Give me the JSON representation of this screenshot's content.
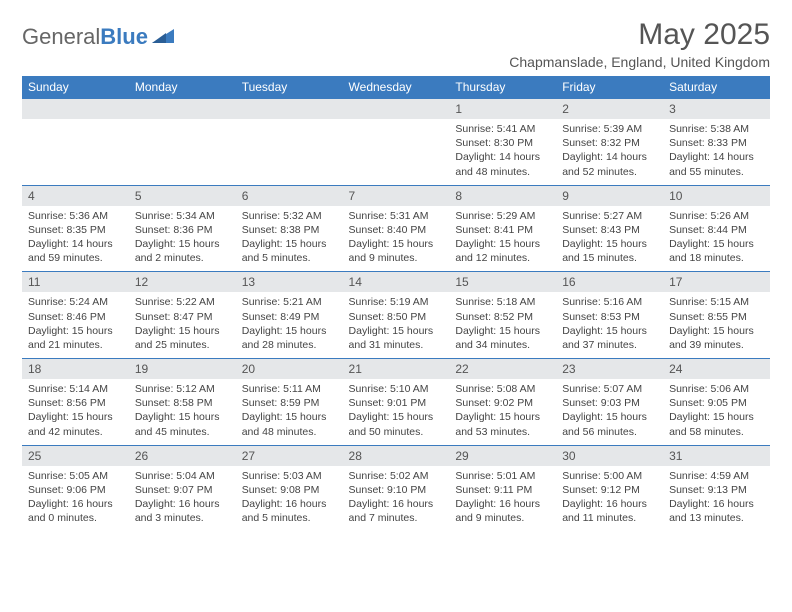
{
  "logo": {
    "text_general": "General",
    "text_blue": "Blue"
  },
  "title": "May 2025",
  "location": "Chapmanslade, England, United Kingdom",
  "colors": {
    "header_bg": "#3b7bbf",
    "header_text": "#ffffff",
    "date_row_bg": "#e5e7e9",
    "border": "#3b7bbf",
    "body_text": "#444444",
    "title_text": "#555555"
  },
  "day_names": [
    "Sunday",
    "Monday",
    "Tuesday",
    "Wednesday",
    "Thursday",
    "Friday",
    "Saturday"
  ],
  "weeks": [
    {
      "dates": [
        "",
        "",
        "",
        "",
        "1",
        "2",
        "3"
      ],
      "cells": [
        null,
        null,
        null,
        null,
        {
          "sunrise": "5:41 AM",
          "sunset": "8:30 PM",
          "daylight": "14 hours and 48 minutes."
        },
        {
          "sunrise": "5:39 AM",
          "sunset": "8:32 PM",
          "daylight": "14 hours and 52 minutes."
        },
        {
          "sunrise": "5:38 AM",
          "sunset": "8:33 PM",
          "daylight": "14 hours and 55 minutes."
        }
      ]
    },
    {
      "dates": [
        "4",
        "5",
        "6",
        "7",
        "8",
        "9",
        "10"
      ],
      "cells": [
        {
          "sunrise": "5:36 AM",
          "sunset": "8:35 PM",
          "daylight": "14 hours and 59 minutes."
        },
        {
          "sunrise": "5:34 AM",
          "sunset": "8:36 PM",
          "daylight": "15 hours and 2 minutes."
        },
        {
          "sunrise": "5:32 AM",
          "sunset": "8:38 PM",
          "daylight": "15 hours and 5 minutes."
        },
        {
          "sunrise": "5:31 AM",
          "sunset": "8:40 PM",
          "daylight": "15 hours and 9 minutes."
        },
        {
          "sunrise": "5:29 AM",
          "sunset": "8:41 PM",
          "daylight": "15 hours and 12 minutes."
        },
        {
          "sunrise": "5:27 AM",
          "sunset": "8:43 PM",
          "daylight": "15 hours and 15 minutes."
        },
        {
          "sunrise": "5:26 AM",
          "sunset": "8:44 PM",
          "daylight": "15 hours and 18 minutes."
        }
      ]
    },
    {
      "dates": [
        "11",
        "12",
        "13",
        "14",
        "15",
        "16",
        "17"
      ],
      "cells": [
        {
          "sunrise": "5:24 AM",
          "sunset": "8:46 PM",
          "daylight": "15 hours and 21 minutes."
        },
        {
          "sunrise": "5:22 AM",
          "sunset": "8:47 PM",
          "daylight": "15 hours and 25 minutes."
        },
        {
          "sunrise": "5:21 AM",
          "sunset": "8:49 PM",
          "daylight": "15 hours and 28 minutes."
        },
        {
          "sunrise": "5:19 AM",
          "sunset": "8:50 PM",
          "daylight": "15 hours and 31 minutes."
        },
        {
          "sunrise": "5:18 AM",
          "sunset": "8:52 PM",
          "daylight": "15 hours and 34 minutes."
        },
        {
          "sunrise": "5:16 AM",
          "sunset": "8:53 PM",
          "daylight": "15 hours and 37 minutes."
        },
        {
          "sunrise": "5:15 AM",
          "sunset": "8:55 PM",
          "daylight": "15 hours and 39 minutes."
        }
      ]
    },
    {
      "dates": [
        "18",
        "19",
        "20",
        "21",
        "22",
        "23",
        "24"
      ],
      "cells": [
        {
          "sunrise": "5:14 AM",
          "sunset": "8:56 PM",
          "daylight": "15 hours and 42 minutes."
        },
        {
          "sunrise": "5:12 AM",
          "sunset": "8:58 PM",
          "daylight": "15 hours and 45 minutes."
        },
        {
          "sunrise": "5:11 AM",
          "sunset": "8:59 PM",
          "daylight": "15 hours and 48 minutes."
        },
        {
          "sunrise": "5:10 AM",
          "sunset": "9:01 PM",
          "daylight": "15 hours and 50 minutes."
        },
        {
          "sunrise": "5:08 AM",
          "sunset": "9:02 PM",
          "daylight": "15 hours and 53 minutes."
        },
        {
          "sunrise": "5:07 AM",
          "sunset": "9:03 PM",
          "daylight": "15 hours and 56 minutes."
        },
        {
          "sunrise": "5:06 AM",
          "sunset": "9:05 PM",
          "daylight": "15 hours and 58 minutes."
        }
      ]
    },
    {
      "dates": [
        "25",
        "26",
        "27",
        "28",
        "29",
        "30",
        "31"
      ],
      "cells": [
        {
          "sunrise": "5:05 AM",
          "sunset": "9:06 PM",
          "daylight": "16 hours and 0 minutes."
        },
        {
          "sunrise": "5:04 AM",
          "sunset": "9:07 PM",
          "daylight": "16 hours and 3 minutes."
        },
        {
          "sunrise": "5:03 AM",
          "sunset": "9:08 PM",
          "daylight": "16 hours and 5 minutes."
        },
        {
          "sunrise": "5:02 AM",
          "sunset": "9:10 PM",
          "daylight": "16 hours and 7 minutes."
        },
        {
          "sunrise": "5:01 AM",
          "sunset": "9:11 PM",
          "daylight": "16 hours and 9 minutes."
        },
        {
          "sunrise": "5:00 AM",
          "sunset": "9:12 PM",
          "daylight": "16 hours and 11 minutes."
        },
        {
          "sunrise": "4:59 AM",
          "sunset": "9:13 PM",
          "daylight": "16 hours and 13 minutes."
        }
      ]
    }
  ],
  "labels": {
    "sunrise": "Sunrise: ",
    "sunset": "Sunset: ",
    "daylight": "Daylight: "
  }
}
